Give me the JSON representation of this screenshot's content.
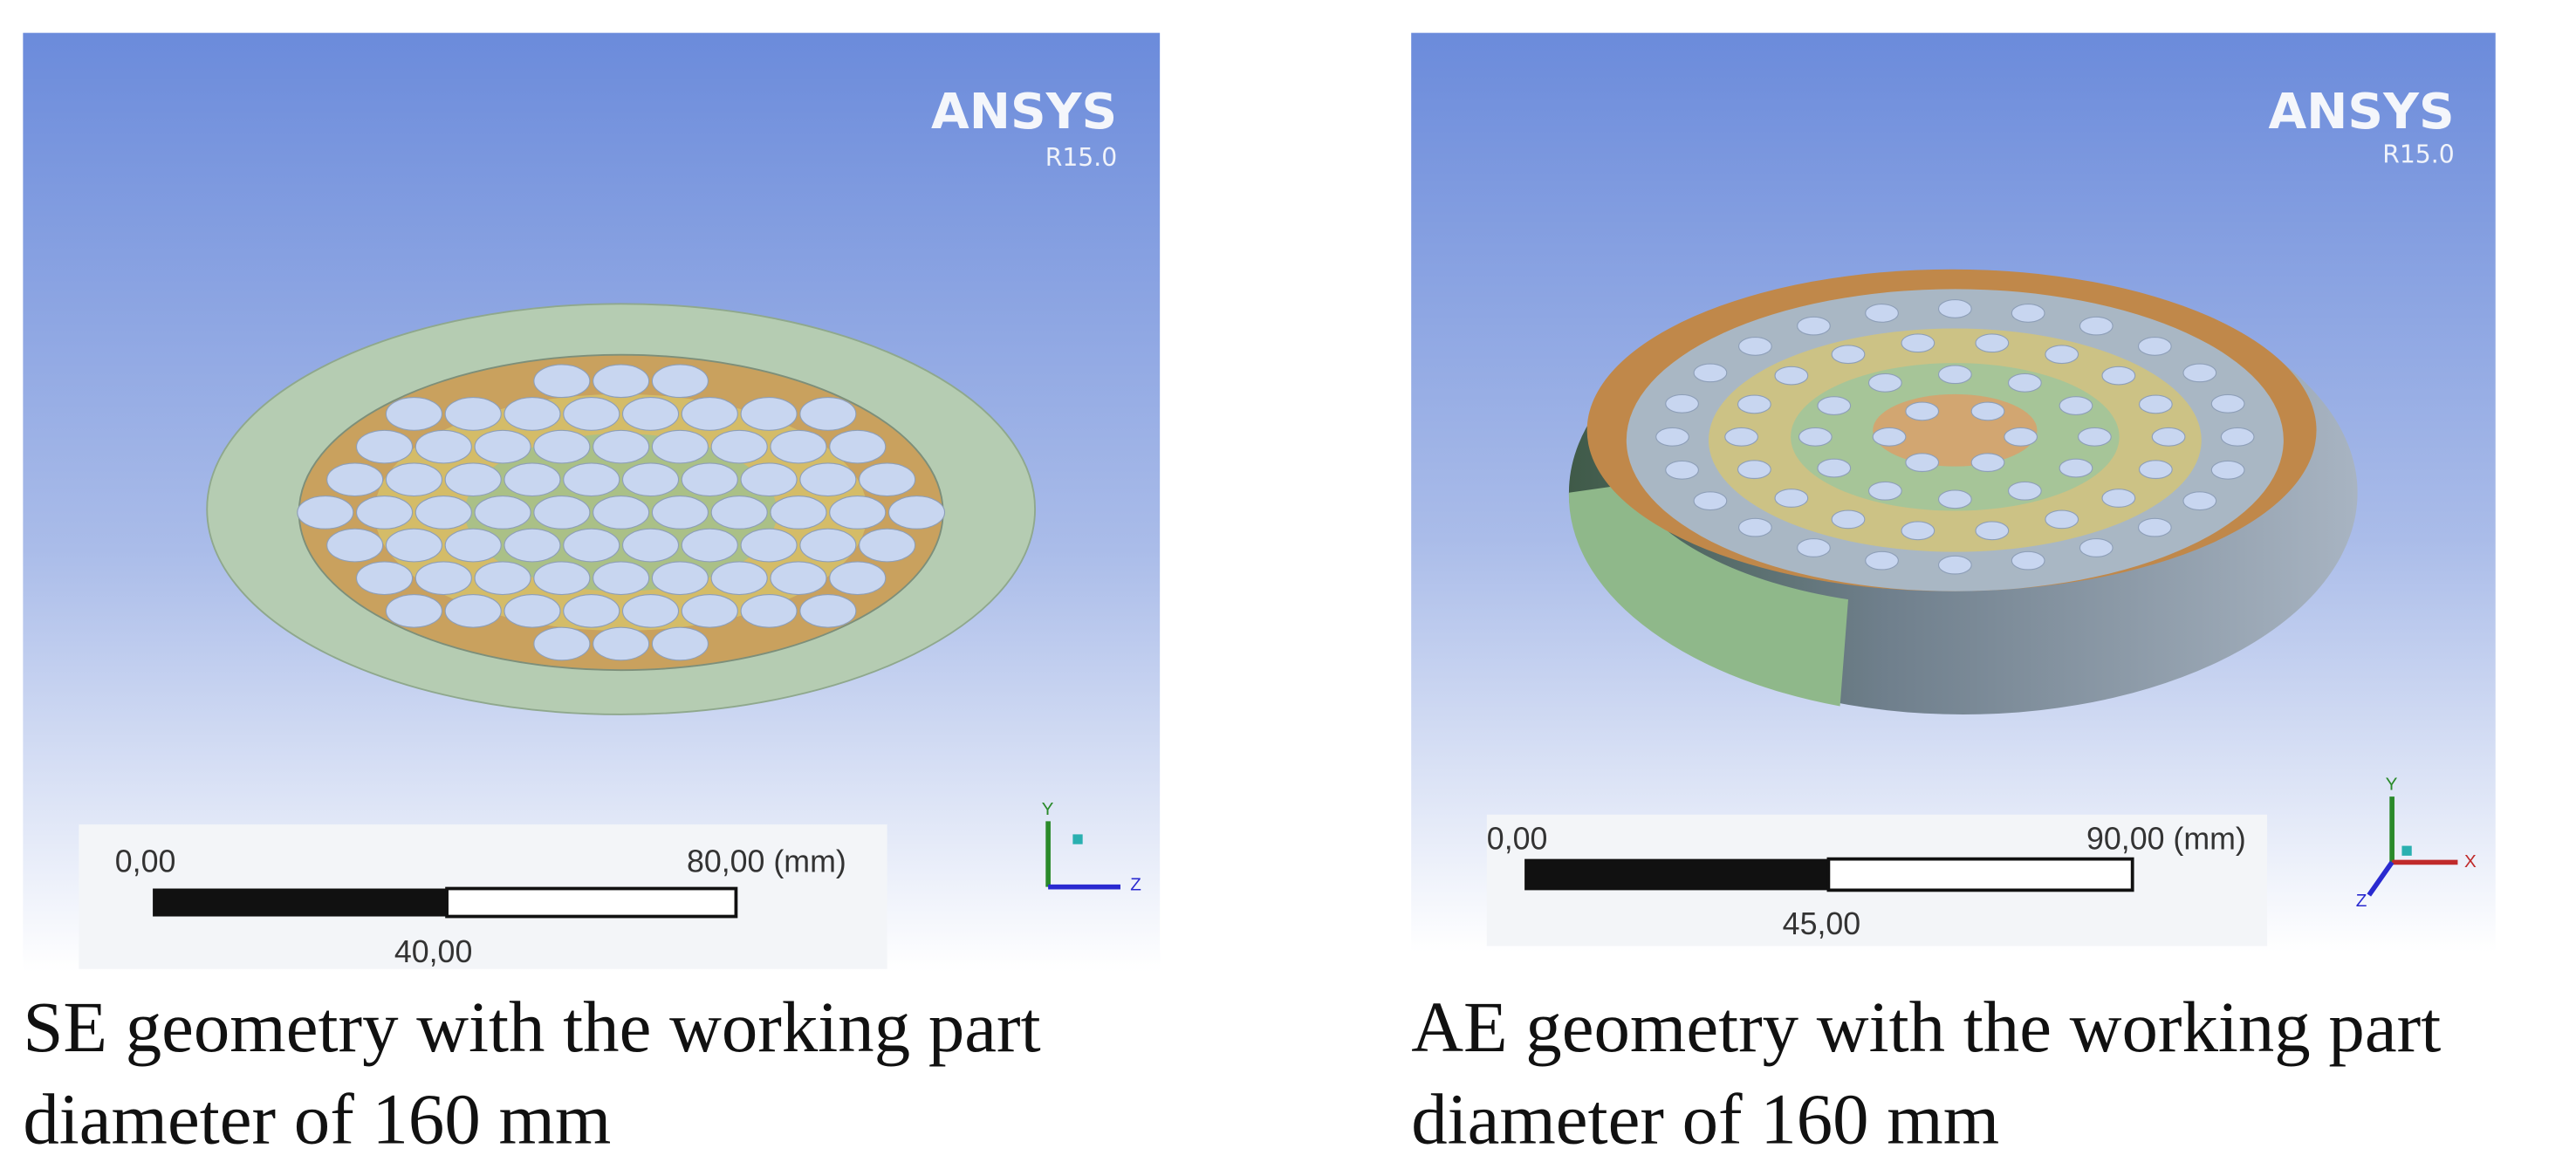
{
  "panels": [
    {
      "logo": "ANSYS",
      "version": "R15.0",
      "scale": {
        "start": "0,00",
        "end": "80,00 (mm)",
        "mid": "40,00"
      },
      "axes": [
        "Y",
        "Z"
      ],
      "caption": [
        "SE geometry with the working part",
        "diameter of 160 mm"
      ]
    },
    {
      "logo": "ANSYS",
      "version": "R15.0",
      "scale": {
        "start": "0,00",
        "end": "90,00 (mm)",
        "mid": "45,00"
      },
      "axes": [
        "Y",
        "X",
        "Z"
      ],
      "caption": [
        "AE geometry with the working part",
        "diameter of 160 mm"
      ]
    }
  ]
}
